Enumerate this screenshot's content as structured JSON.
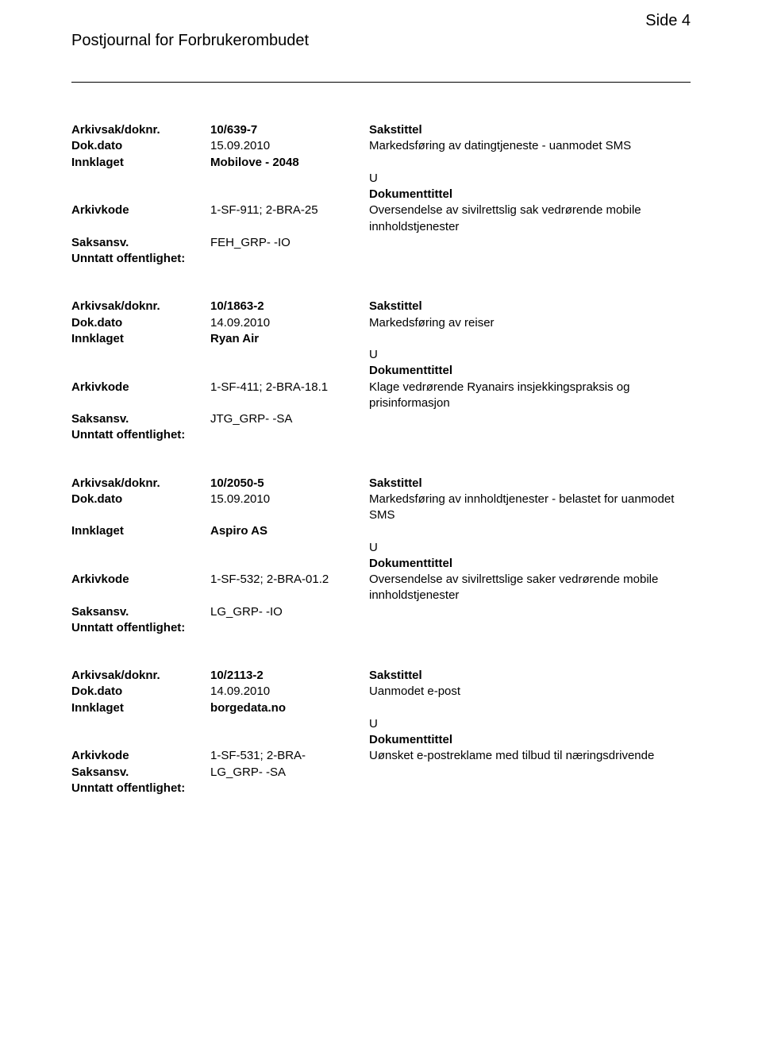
{
  "header": {
    "title": "Postjournal for Forbrukerombudet",
    "page_label": "Side 4"
  },
  "labels": {
    "arkivsak": "Arkivsak/doknr.",
    "dokdato": "Dok.dato",
    "innklaget": "Innklaget",
    "arkivkode": "Arkivkode",
    "saksansv": "Saksansv.",
    "unntatt": "Unntatt offentlighet:",
    "sakstittel": "Sakstittel",
    "dokumenttittel": "Dokumenttittel"
  },
  "records": [
    {
      "arkivsak": "10/639-7",
      "dokdato": "15.09.2010",
      "innklaget": "Mobilove - 2048",
      "arkivkode": "1-SF-911; 2-BRA-25",
      "saksansv": "FEH_GRP- -IO",
      "sakstittel": "Markedsføring av datingtjeneste - uanmodet SMS",
      "kode": "U",
      "doktittel": "Oversendelse av sivilrettslig sak vedrørende mobile innholdstjenester"
    },
    {
      "arkivsak": "10/1863-2",
      "dokdato": "14.09.2010",
      "innklaget": "Ryan Air",
      "arkivkode": "1-SF-411; 2-BRA-18.1",
      "saksansv": "JTG_GRP- -SA",
      "sakstittel": "Markedsføring av reiser",
      "kode": "U",
      "doktittel": "Klage vedrørende Ryanairs insjekkingspraksis og prisinformasjon"
    },
    {
      "arkivsak": "10/2050-5",
      "dokdato": "15.09.2010",
      "innklaget": "Aspiro AS",
      "arkivkode": "1-SF-532; 2-BRA-01.2",
      "saksansv": "LG_GRP- -IO",
      "sakstittel": "Markedsføring av innholdtjenester - belastet for uanmodet SMS",
      "kode": "U",
      "doktittel": "Oversendelse av sivilrettslige saker vedrørende mobile innholdstjenester"
    },
    {
      "arkivsak": "10/2113-2",
      "dokdato": "14.09.2010",
      "innklaget": "borgedata.no",
      "arkivkode": "1-SF-531; 2-BRA-",
      "saksansv": "LG_GRP- -SA",
      "sakstittel": "Uanmodet e-post",
      "kode": "U",
      "doktittel": "Uønsket e-postreklame med tilbud til næringsdrivende"
    }
  ]
}
